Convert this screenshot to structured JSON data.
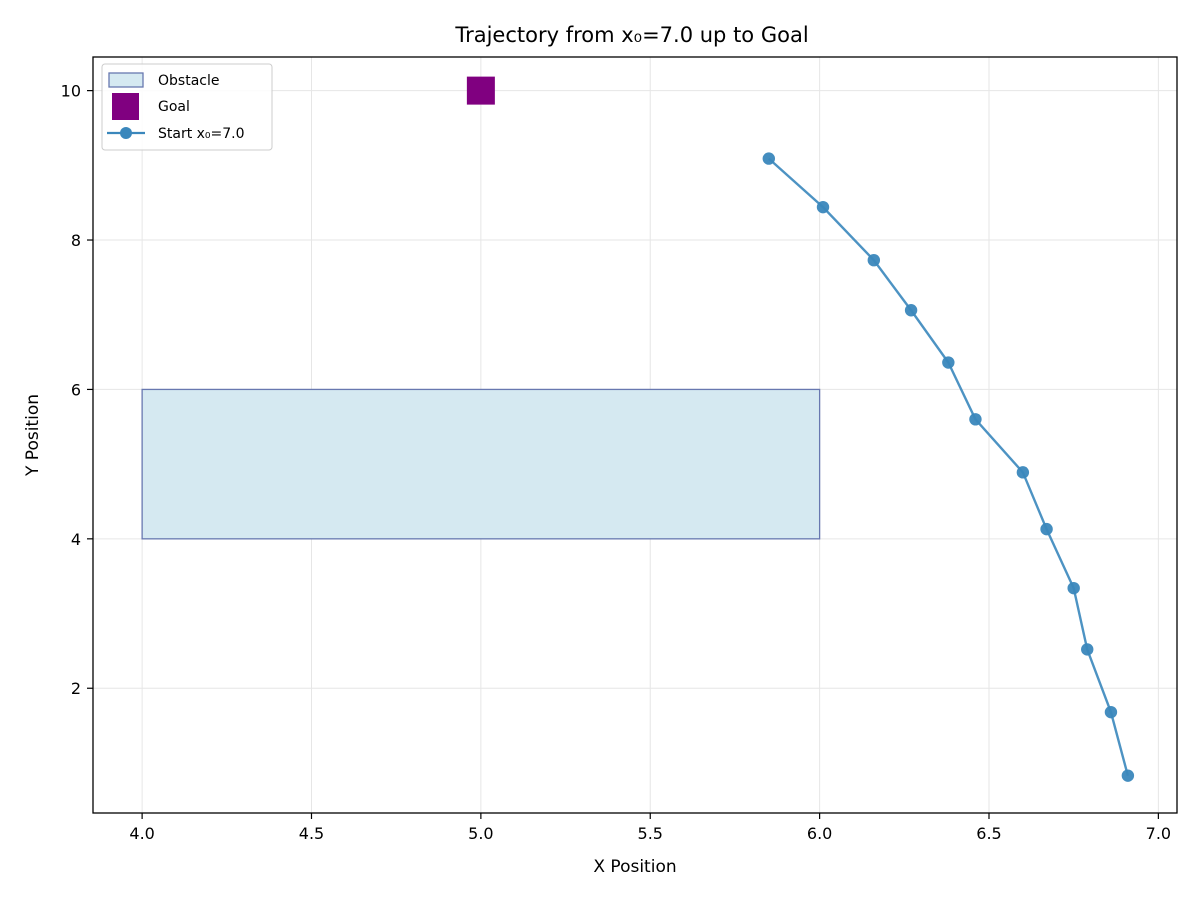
{
  "chart_data": {
    "type": "scatter",
    "title": "Trajectory from x₀=7.0 up to Goal",
    "xlabel": "X Position",
    "ylabel": "Y Position",
    "xlim": [
      3.855,
      7.055
    ],
    "ylim": [
      0.33,
      10.45
    ],
    "xticks": [
      "4.0",
      "4.5",
      "5.0",
      "5.5",
      "6.0",
      "6.5",
      "7.0"
    ],
    "xtick_values": [
      4.0,
      4.5,
      5.0,
      5.5,
      6.0,
      6.5,
      7.0
    ],
    "yticks": [
      "2",
      "4",
      "6",
      "8",
      "10"
    ],
    "ytick_values": [
      2,
      4,
      6,
      8,
      10
    ],
    "grid": true,
    "legend_position": "top-left",
    "obstacle": {
      "name": "Obstacle",
      "x_range": [
        4.0,
        6.0
      ],
      "y_range": [
        4.0,
        6.0
      ],
      "fill_color": "#d5e9f1",
      "edge_color": "#6878b0"
    },
    "goal": {
      "name": "Goal",
      "x": 5.0,
      "y": 10.0,
      "color": "#800080"
    },
    "series": [
      {
        "name": "Start x₀=7.0",
        "color": "#3a87bc",
        "x": [
          6.91,
          6.86,
          6.79,
          6.75,
          6.67,
          6.6,
          6.46,
          6.38,
          6.27,
          6.16,
          6.01,
          5.85
        ],
        "y": [
          0.83,
          1.68,
          2.52,
          3.34,
          4.13,
          4.89,
          5.6,
          6.36,
          7.06,
          7.73,
          8.44,
          9.09
        ]
      }
    ]
  }
}
